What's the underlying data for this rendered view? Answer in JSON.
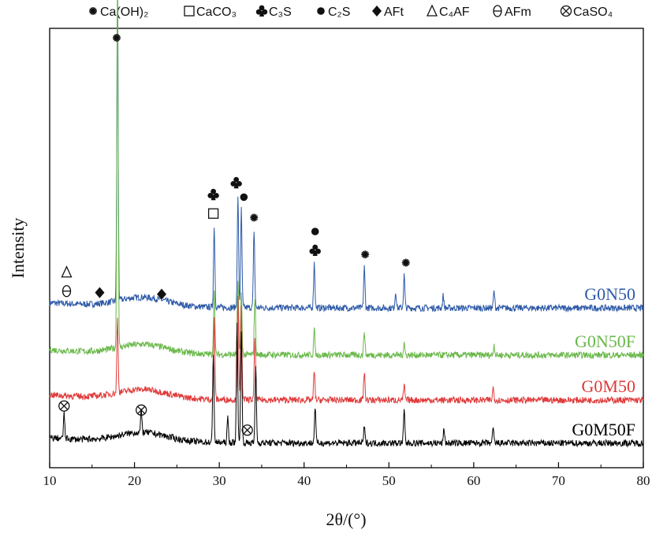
{
  "chart_data": {
    "type": "line",
    "title": "",
    "xlabel": "2θ/(°)",
    "ylabel": "Intensity",
    "xlim": [
      10,
      80
    ],
    "xticks": [
      10,
      20,
      30,
      40,
      50,
      60,
      70,
      80
    ],
    "grid": false,
    "legend": {
      "placement": "top",
      "entries": [
        {
          "symbol": "asterisk",
          "label": "Ca(OH)₂"
        },
        {
          "symbol": "square",
          "label": "CaCO₃"
        },
        {
          "symbol": "club",
          "label": "C₃S"
        },
        {
          "symbol": "dot",
          "label": "C₂S"
        },
        {
          "symbol": "diamond",
          "label": "AFt"
        },
        {
          "symbol": "delta",
          "label": "C₄AF"
        },
        {
          "symbol": "theta",
          "label": "AFm"
        },
        {
          "symbol": "otimes",
          "label": "CaSO₄"
        }
      ]
    },
    "series": [
      {
        "name": "G0N50",
        "color": "#2e5aa8",
        "baseline": 0.78,
        "peaks": [
          [
            18.0,
            1.55
          ],
          [
            29.4,
            0.4
          ],
          [
            32.2,
            0.55
          ],
          [
            32.6,
            0.48
          ],
          [
            34.1,
            0.38
          ],
          [
            41.2,
            0.22
          ],
          [
            47.1,
            0.2
          ],
          [
            50.8,
            0.08
          ],
          [
            51.8,
            0.16
          ],
          [
            56.4,
            0.06
          ],
          [
            62.4,
            0.08
          ]
        ]
      },
      {
        "name": "G0N50F",
        "color": "#6ab84a",
        "baseline": 0.55,
        "peaks": [
          [
            18.0,
            1.75
          ],
          [
            29.4,
            0.32
          ],
          [
            32.2,
            0.36
          ],
          [
            32.6,
            0.3
          ],
          [
            34.2,
            0.28
          ],
          [
            41.2,
            0.12
          ],
          [
            47.1,
            0.12
          ],
          [
            51.8,
            0.06
          ],
          [
            62.4,
            0.05
          ]
        ]
      },
      {
        "name": "G0M50",
        "color": "#e03a3a",
        "baseline": 0.33,
        "peaks": [
          [
            18.0,
            0.36
          ],
          [
            29.4,
            0.4
          ],
          [
            32.2,
            0.52
          ],
          [
            32.6,
            0.45
          ],
          [
            34.2,
            0.3
          ],
          [
            41.2,
            0.14
          ],
          [
            47.1,
            0.14
          ],
          [
            51.8,
            0.07
          ],
          [
            62.3,
            0.06
          ]
        ]
      },
      {
        "name": "G0M50F",
        "color": "#000000",
        "baseline": 0.12,
        "peaks": [
          [
            11.7,
            0.12
          ],
          [
            20.8,
            0.1
          ],
          [
            29.3,
            0.44
          ],
          [
            31.0,
            0.12
          ],
          [
            32.1,
            0.6
          ],
          [
            32.6,
            0.56
          ],
          [
            34.3,
            0.38
          ],
          [
            41.3,
            0.18
          ],
          [
            47.1,
            0.08
          ],
          [
            51.8,
            0.16
          ],
          [
            56.5,
            0.07
          ],
          [
            62.3,
            0.07
          ]
        ]
      }
    ],
    "annotations": [
      {
        "series": "G0N50",
        "x": 17.9,
        "symbol": "asterisk"
      },
      {
        "series": "G0N50",
        "x": 12.0,
        "symbol": "theta"
      },
      {
        "series": "G0N50",
        "x": 12.0,
        "symbol": "delta"
      },
      {
        "series": "G0N50",
        "x": 15.9,
        "symbol": "diamond"
      },
      {
        "series": "G0N50",
        "x": 23.2,
        "symbol": "diamond"
      },
      {
        "series": "G0N50",
        "x": 29.3,
        "symbol": "square"
      },
      {
        "series": "G0N50",
        "x": 29.3,
        "symbol": "club"
      },
      {
        "series": "G0N50",
        "x": 32.0,
        "symbol": "club"
      },
      {
        "series": "G0N50",
        "x": 32.9,
        "symbol": "dot"
      },
      {
        "series": "G0N50",
        "x": 34.1,
        "symbol": "asterisk"
      },
      {
        "series": "G0N50",
        "x": 41.3,
        "symbol": "club"
      },
      {
        "series": "G0N50",
        "x": 41.3,
        "symbol": "dot"
      },
      {
        "series": "G0N50",
        "x": 47.2,
        "symbol": "asterisk"
      },
      {
        "series": "G0N50",
        "x": 52.0,
        "symbol": "asterisk"
      },
      {
        "series": "G0M50F",
        "x": 11.7,
        "symbol": "otimes"
      },
      {
        "series": "G0M50F",
        "x": 20.8,
        "symbol": "otimes"
      },
      {
        "series": "G0M50F",
        "x": 33.3,
        "symbol": "otimes"
      }
    ]
  }
}
